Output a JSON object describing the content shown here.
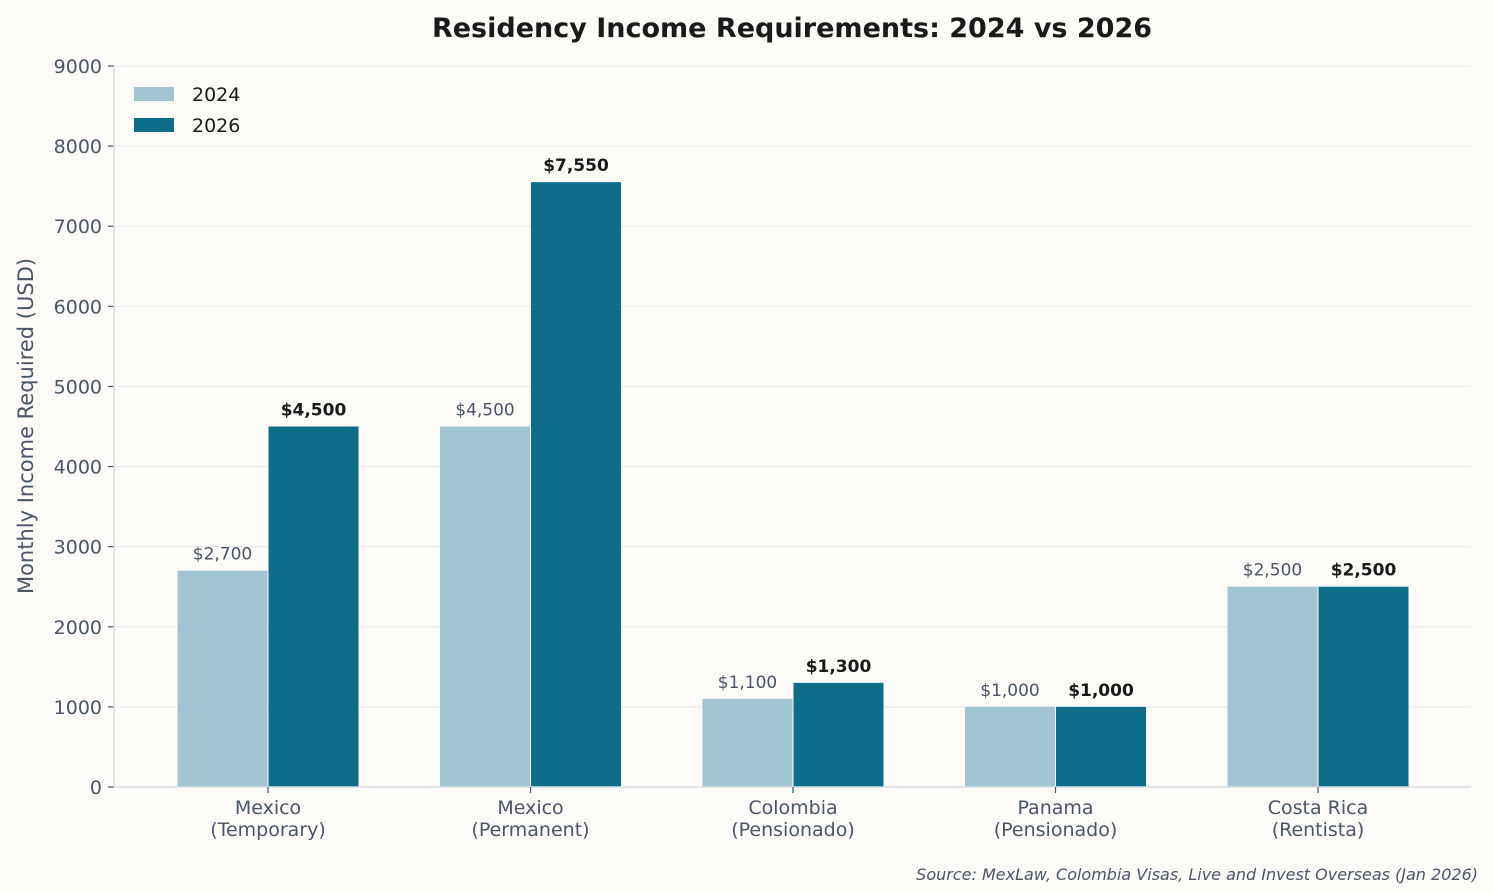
{
  "chart_data": {
    "type": "bar",
    "title": "Residency Income Requirements: 2024 vs 2026",
    "xlabel": "",
    "ylabel": "Monthly Income Required (USD)",
    "ylim": [
      0,
      9000
    ],
    "yticks": [
      0,
      1000,
      2000,
      3000,
      4000,
      5000,
      6000,
      7000,
      8000,
      9000
    ],
    "grid": true,
    "legend_position": "top-left",
    "categories": [
      [
        "Mexico",
        "(Temporary)"
      ],
      [
        "Mexico",
        "(Permanent)"
      ],
      [
        "Colombia",
        "(Pensionado)"
      ],
      [
        "Panama",
        "(Pensionado)"
      ],
      [
        "Costa Rica",
        "(Rentista)"
      ]
    ],
    "series": [
      {
        "name": "2024",
        "color": "#a2c4d0",
        "values": [
          2700,
          4500,
          1100,
          1000,
          2500
        ],
        "labels": [
          "$2,700",
          "$4,500",
          "$1,100",
          "$1,000",
          "$2,500"
        ]
      },
      {
        "name": "2026",
        "color": "#0e6e8a",
        "values": [
          4500,
          7550,
          1300,
          1000,
          2500
        ],
        "labels": [
          "$4,500",
          "$7,550",
          "$1,300",
          "$1,000",
          "$2,500"
        ]
      }
    ],
    "source": "Source: MexLaw, Colombia Visas, Live and Invest Overseas (Jan 2026)"
  }
}
